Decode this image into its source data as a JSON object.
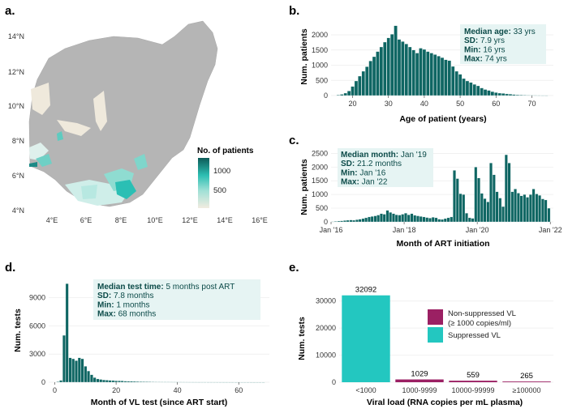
{
  "panels": {
    "a": "a.",
    "b": "b.",
    "c": "c.",
    "d": "d.",
    "e": "e."
  },
  "colors": {
    "teal_dark": "#0f6663",
    "teal_light": "#23c7c0",
    "magenta": "#9b2063",
    "map_grey": "#b3b3b3",
    "stat_bg": "#e6f4f3"
  },
  "chart_data": [
    {
      "id": "a",
      "type": "map",
      "title": "",
      "lat_ticks": [
        "14°N",
        "12°N",
        "10°N",
        "8°N",
        "6°N",
        "4°N"
      ],
      "lon_ticks": [
        "4°E",
        "6°E",
        "8°E",
        "10°E",
        "12°E",
        "14°E",
        "16°E"
      ],
      "legend_title": "No. of patients",
      "legend_ticks": [
        "1000",
        "500"
      ],
      "legend_range": [
        0,
        1300
      ]
    },
    {
      "id": "b",
      "type": "bar",
      "xlabel": "Age of patient (years)",
      "ylabel": "Num. patients",
      "xlim": [
        14,
        76
      ],
      "ylim": [
        0,
        2400
      ],
      "x_ticks": [
        20,
        30,
        40,
        50,
        60,
        70
      ],
      "y_ticks": [
        0,
        500,
        1000,
        1500,
        2000
      ],
      "x": [
        16,
        17,
        18,
        19,
        20,
        21,
        22,
        23,
        24,
        25,
        26,
        27,
        28,
        29,
        30,
        31,
        32,
        33,
        34,
        35,
        36,
        37,
        38,
        39,
        40,
        41,
        42,
        43,
        44,
        45,
        46,
        47,
        48,
        49,
        50,
        51,
        52,
        53,
        54,
        55,
        56,
        57,
        58,
        59,
        60,
        61,
        62,
        63,
        64,
        65,
        66,
        67,
        68,
        69,
        70,
        71,
        72,
        73,
        74
      ],
      "values": [
        20,
        40,
        80,
        150,
        300,
        480,
        640,
        800,
        950,
        1140,
        1280,
        1450,
        1600,
        1760,
        1900,
        2020,
        2300,
        1850,
        1780,
        1700,
        1600,
        1500,
        1400,
        1560,
        1520,
        1450,
        1400,
        1350,
        1300,
        1250,
        1180,
        1150,
        960,
        800,
        700,
        560,
        480,
        430,
        370,
        320,
        250,
        200,
        170,
        130,
        100,
        80,
        70,
        55,
        45,
        35,
        25,
        20,
        15,
        12,
        10,
        8,
        6,
        4,
        3
      ],
      "stats": [
        {
          "label": "Median age:",
          "value": "33 yrs"
        },
        {
          "label": "SD:",
          "value": "7.9 yrs"
        },
        {
          "label": "Min:",
          "value": "16 yrs"
        },
        {
          "label": "Max:",
          "value": "74 yrs"
        }
      ]
    },
    {
      "id": "c",
      "type": "bar",
      "xlabel": "Month of ART initiation",
      "ylabel": "Num. patients",
      "xlim": [
        0,
        73
      ],
      "ylim": [
        0,
        2600
      ],
      "x_ticks": [
        {
          "label": "Jan '16",
          "month": 0
        },
        {
          "label": "Jan '18",
          "month": 24
        },
        {
          "label": "Jan '20",
          "month": 48
        },
        {
          "label": "Jan '22",
          "month": 72
        }
      ],
      "y_ticks": [
        0,
        500,
        1000,
        1500,
        2000,
        2500
      ],
      "values": [
        10,
        20,
        30,
        40,
        50,
        60,
        70,
        60,
        80,
        100,
        120,
        150,
        180,
        200,
        220,
        250,
        300,
        280,
        420,
        350,
        300,
        260,
        250,
        280,
        320,
        260,
        300,
        240,
        220,
        200,
        180,
        160,
        140,
        170,
        150,
        100,
        90,
        120,
        150,
        180,
        1880,
        1580,
        1030,
        1000,
        320,
        150,
        130,
        2000,
        1600,
        1040,
        850,
        730,
        2150,
        1720,
        1100,
        870,
        560,
        2450,
        2150,
        1100,
        1200,
        1050,
        950,
        1000,
        900,
        1000,
        1200,
        1020,
        970,
        840,
        800,
        500
      ],
      "stats": [
        {
          "label": "Median month:",
          "value": "Jan '19"
        },
        {
          "label": "SD:",
          "value": "21.2 months"
        },
        {
          "label": "Min:",
          "value": "Jan '16"
        },
        {
          "label": "Max:",
          "value": "Jan '22"
        }
      ]
    },
    {
      "id": "d",
      "type": "bar",
      "xlabel": "Month of VL test (since ART start)",
      "ylabel": "Num. tests",
      "xlim": [
        -2,
        70
      ],
      "ylim": [
        0,
        10700
      ],
      "x_ticks": [
        0,
        20,
        40,
        60
      ],
      "y_ticks": [
        0,
        3000,
        6000,
        9000
      ],
      "x": [
        1,
        2,
        3,
        4,
        5,
        6,
        7,
        8,
        9,
        10,
        11,
        12,
        13,
        14,
        15,
        16,
        17,
        18,
        19,
        20,
        21,
        22,
        23,
        24,
        25,
        26,
        27,
        28,
        29,
        30,
        31,
        32,
        33,
        34,
        35,
        36,
        37,
        38,
        39,
        40,
        41,
        42,
        43,
        44,
        45,
        46,
        47,
        48,
        49,
        50,
        51,
        52,
        53,
        54,
        55,
        56,
        57,
        58,
        59,
        60,
        61,
        62,
        63,
        64,
        65,
        66,
        67,
        68
      ],
      "values": [
        60,
        200,
        5000,
        10500,
        2600,
        2500,
        2300,
        2600,
        2500,
        1700,
        1200,
        800,
        500,
        350,
        300,
        250,
        220,
        200,
        180,
        160,
        150,
        140,
        120,
        110,
        100,
        90,
        80,
        70,
        60,
        55,
        50,
        45,
        40,
        38,
        35,
        32,
        30,
        28,
        26,
        24,
        22,
        20,
        18,
        16,
        15,
        14,
        13,
        12,
        11,
        10,
        9,
        8,
        7,
        6,
        5,
        5,
        4,
        4,
        3,
        3,
        2,
        2,
        2,
        2,
        1,
        1,
        1,
        1
      ],
      "stats": [
        {
          "label": "Median test time:",
          "value": "5 months post ART"
        },
        {
          "label": "SD:",
          "value": "7.8 months"
        },
        {
          "label": "Min:",
          "value": "1 months"
        },
        {
          "label": "Max:",
          "value": "68 months"
        }
      ]
    },
    {
      "id": "e",
      "type": "bar",
      "xlabel": "Viral load (RNA copies per mL plasma)",
      "ylabel": "Num. tests",
      "categories": [
        "<1000",
        "1000-9999",
        "10000-99999",
        "≥100000"
      ],
      "values": [
        32092,
        1029,
        559,
        265
      ],
      "ylim": [
        0,
        35000
      ],
      "y_ticks": [
        0,
        10000,
        20000,
        30000
      ],
      "legend": [
        {
          "name": "Non-suppressed VL",
          "sub": "(≥ 1000 copies/ml)"
        },
        {
          "name": "Suppressed VL"
        }
      ]
    }
  ]
}
